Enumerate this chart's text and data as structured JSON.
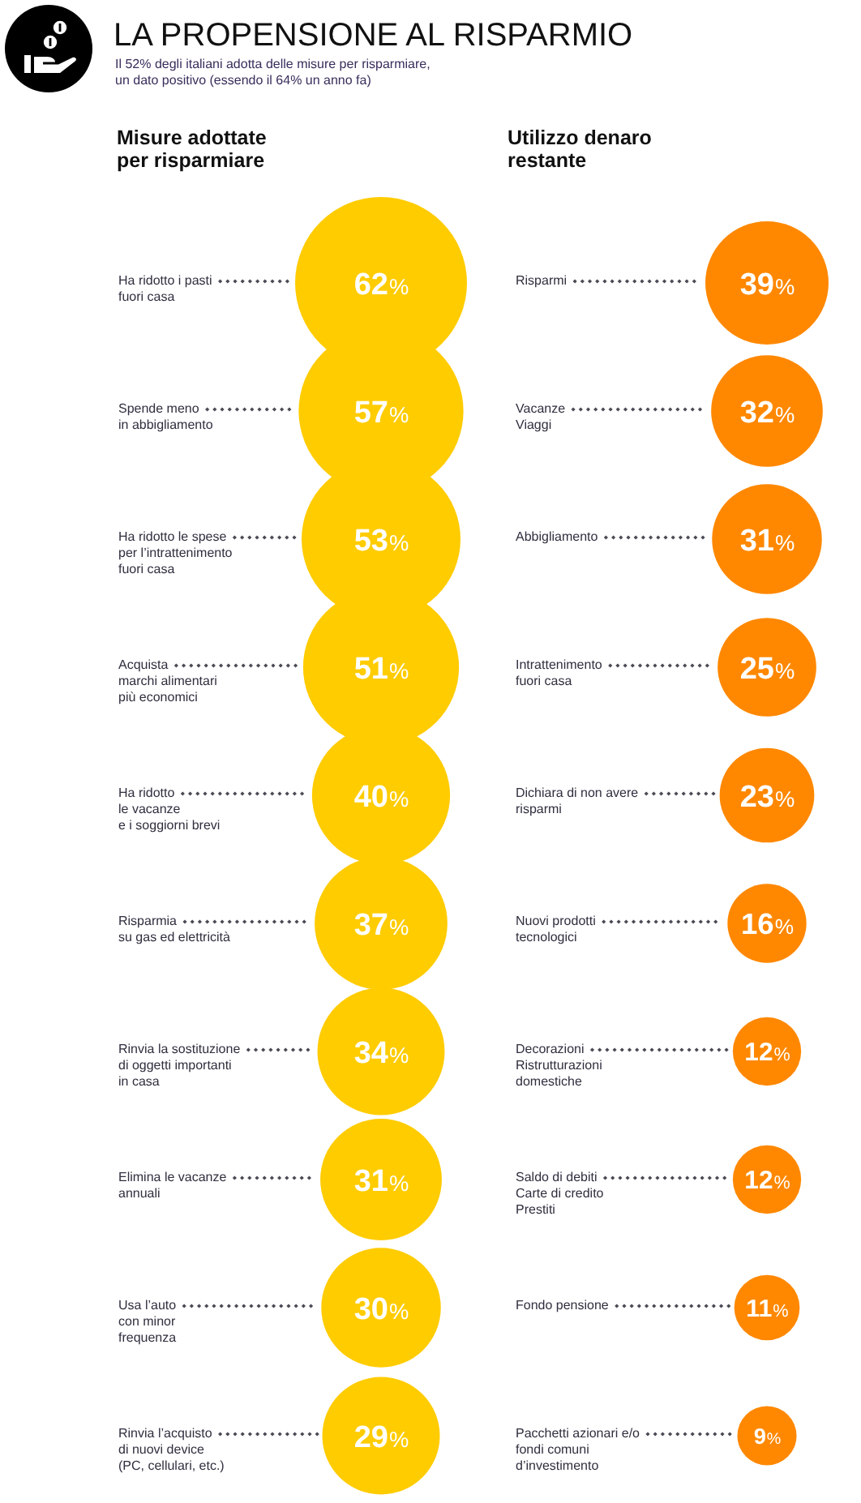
{
  "chart_data": [
    {
      "type": "other",
      "title": "LA PROPENSIONE AL RISPARMIO",
      "subtitle": "Il 52% degli italiani adotta delle misure per risparmiare,\nun dato positivo (essendo il 64% un anno fa)"
    },
    {
      "type": "other",
      "title": "Misure adottate per risparmiare",
      "categories": [
        "Ha ridotto i pasti\nfuori casa",
        "Spende meno\nin abbigliamento",
        "Ha ridotto le spese\nper l’intrattenimento\nfuori casa",
        "Acquista\nmarchi alimentari\npiù economici",
        "Ha ridotto\nle vacanze\ne i soggiorni brevi",
        "Risparmia\nsu gas ed elettricità",
        "Rinvia la sostituzione\ndi oggetti importanti\nin casa",
        "Elimina le vacanze\nannuali",
        "Usa l’auto\ncon minor\nfrequenza",
        "Rinvia l’acquisto\ndi nuovi device\n(PC, cellulari, etc.)"
      ],
      "values": [
        62,
        57,
        53,
        51,
        40,
        37,
        34,
        31,
        30,
        29
      ],
      "value_labels": [
        "62%",
        "57%",
        "53%",
        "51%",
        "40%",
        "37%",
        "34%",
        "31%",
        "30%",
        "29%"
      ],
      "color": "#ffcc00"
    },
    {
      "type": "other",
      "title": "Utilizzo denaro restante",
      "categories": [
        "Risparmi",
        "Vacanze\nViaggi",
        "Abbigliamento",
        "Intrattenimento\nfuori casa",
        "Dichiara di non avere\nrisparmi",
        "Nuovi prodotti\ntecnologici",
        "Decorazioni\nRistrutturazioni\ndomestiche",
        "Saldo di debiti\nCarte di credito\nPrestiti",
        "Fondo pensione",
        "Pacchetti azionari e/o\nfondi comuni\nd’investimento"
      ],
      "values": [
        39,
        32,
        31,
        25,
        23,
        16,
        12,
        12,
        11,
        9
      ],
      "value_labels": [
        "39%",
        "32%",
        "31%",
        "25%",
        "23%",
        "16%",
        "12%",
        "12%",
        "11%",
        "9%"
      ],
      "color": "#ff8800"
    }
  ]
}
